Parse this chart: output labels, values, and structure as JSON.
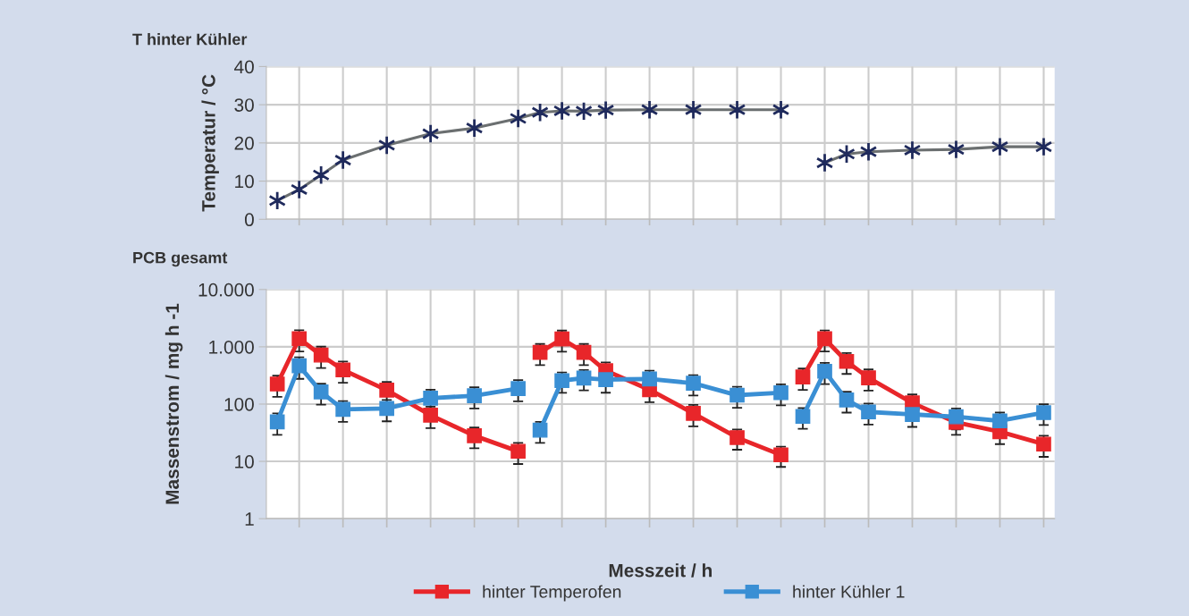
{
  "chart_data": [
    {
      "type": "line",
      "title": "T hinter Kühler",
      "ylabel": "Temperatur / °C",
      "categories": [
        null,
        null,
        null,
        null,
        null,
        null,
        null,
        null,
        null,
        null,
        null,
        null,
        null,
        null,
        null,
        null,
        null,
        null,
        null,
        null,
        null,
        null,
        null,
        null,
        null,
        null,
        null,
        null,
        null,
        null,
        null,
        null,
        null,
        null,
        null,
        null
      ],
      "series": [
        {
          "color": "#6b6f70",
          "values": [
            4.9,
            7.8,
            11.6,
            15.5,
            null,
            19.4,
            null,
            22.4,
            null,
            23.9,
            null,
            26.4,
            28,
            28.4,
            28.3,
            28.6,
            null,
            28.7,
            null,
            28.7,
            null,
            28.7,
            null,
            28.7,
            null,
            null,
            null,
            null,
            null,
            null,
            null,
            null,
            null,
            null,
            null,
            null
          ],
          "colors": [
            "#1f2a5c",
            "#1f2a5c",
            "#1f2a5c",
            "#1f2a5c",
            null,
            "#1f2a5c",
            null,
            "#1f2a5c",
            null,
            "#1f2a5c",
            null,
            "#1f2a5c",
            "#1f2a5c",
            "#1f2a5c",
            "#1f2a5c",
            "#1f2a5c",
            null,
            "#1f2a5c",
            null,
            "#1f2a5c",
            null,
            "#1f2a5c",
            null,
            "#1f2a5c",
            null,
            null,
            null,
            null,
            null,
            null,
            null,
            null,
            null,
            null,
            null,
            null
          ]
        },
        {
          "color": "#6b6f70",
          "values": [
            null,
            null,
            null,
            null,
            null,
            null,
            null,
            null,
            null,
            null,
            null,
            null,
            null,
            null,
            null,
            null,
            null,
            null,
            null,
            null,
            null,
            null,
            null,
            null,
            null,
            14.8,
            17.1,
            17.7,
            null,
            18.1,
            null,
            18.3,
            null,
            19.0,
            null,
            19.0
          ],
          "colors": [
            null,
            null,
            null,
            null,
            null,
            null,
            null,
            null,
            null,
            null,
            null,
            null,
            null,
            null,
            null,
            null,
            null,
            null,
            null,
            null,
            null,
            null,
            null,
            null,
            null,
            "#1f2a5c",
            "#1f2a5c",
            "#1f2a5c",
            null,
            "#1f2a5c",
            null,
            "#1f2a5c",
            null,
            "#1f2a5c",
            null,
            "#1f2a5c"
          ]
        }
      ],
      "ylim": [
        0,
        40
      ],
      "yticks": [
        0,
        10,
        20,
        30,
        40
      ],
      "tick_labels": "y",
      "grid": true,
      "marker": "cross",
      "line_style": "solid",
      "legend": false
    },
    {
      "type": "line",
      "title": "PCB gesamt",
      "xlabel": "Messzeit / h",
      "ylabel": "Massenstrom / mg h -1",
      "categories": [
        null,
        null,
        null,
        null,
        null,
        null,
        null,
        null,
        null,
        null,
        null,
        null,
        null,
        null,
        null,
        null,
        null,
        null,
        null,
        null,
        null,
        null,
        null,
        null,
        null,
        null,
        null,
        null,
        null,
        null,
        null,
        null,
        null,
        null,
        null,
        null
      ],
      "series": [
        {
          "name": "hinter Temperofen",
          "color": "#e8262a",
          "values": [
            224,
            1390,
            716,
            395,
            null,
            175,
            null,
            64,
            null,
            28,
            null,
            15,
            null,
            null,
            null,
            null,
            null,
            null,
            null,
            null,
            null,
            null,
            null,
            null,
            null,
            null,
            null,
            null,
            null,
            null,
            null,
            null,
            null,
            null,
            null,
            null
          ],
          "errors": [
            90,
            560,
            290,
            160,
            null,
            70,
            null,
            26,
            null,
            11,
            null,
            6,
            null,
            null,
            null,
            null,
            null,
            null,
            null,
            null,
            null,
            null,
            null,
            null,
            null,
            null,
            null,
            null,
            null,
            null,
            null,
            null,
            null,
            null,
            null,
            null
          ]
        },
        {
          "name": "hinter Kühler 1",
          "color": "#3a8fd4",
          "values": [
            49,
            466,
            163,
            81,
            null,
            84,
            null,
            127,
            null,
            140,
            null,
            187,
            null,
            null,
            null,
            null,
            null,
            null,
            null,
            null,
            null,
            null,
            null,
            null,
            null,
            null,
            null,
            null,
            null,
            null,
            null,
            null,
            null,
            null,
            null,
            null
          ],
          "errors": [
            20,
            190,
            65,
            32,
            null,
            34,
            null,
            51,
            null,
            56,
            null,
            75,
            null,
            null,
            null,
            null,
            null,
            null,
            null,
            null,
            null,
            null,
            null,
            null,
            null,
            null,
            null,
            null,
            null,
            null,
            null,
            null,
            null,
            null,
            null,
            null
          ]
        },
        {
          "color": "#e8262a",
          "values": [
            null,
            null,
            null,
            null,
            null,
            null,
            null,
            null,
            null,
            null,
            null,
            null,
            800,
            1370,
            800,
            384,
            null,
            178,
            null,
            69,
            null,
            26,
            null,
            13,
            null,
            null,
            null,
            null,
            null,
            null,
            null,
            null,
            null,
            null,
            null,
            null
          ],
          "errors": [
            null,
            null,
            null,
            null,
            null,
            null,
            null,
            null,
            null,
            null,
            null,
            null,
            320,
            550,
            320,
            150,
            null,
            70,
            null,
            28,
            null,
            10,
            null,
            5,
            null,
            null,
            null,
            null,
            null,
            null,
            null,
            null,
            null,
            null,
            null,
            null
          ]
        },
        {
          "color": "#3a8fd4",
          "values": [
            null,
            null,
            null,
            null,
            null,
            null,
            null,
            null,
            null,
            null,
            null,
            null,
            35,
            257,
            284,
            268,
            null,
            274,
            null,
            231,
            null,
            143,
            null,
            158,
            null,
            null,
            null,
            null,
            null,
            null,
            null,
            null,
            null,
            null,
            null,
            null
          ],
          "errors": [
            null,
            null,
            null,
            null,
            null,
            null,
            null,
            null,
            null,
            null,
            null,
            null,
            14,
            100,
            110,
            110,
            null,
            110,
            null,
            90,
            null,
            57,
            null,
            63,
            null,
            null,
            null,
            null,
            null,
            null,
            null,
            null,
            null,
            null,
            null,
            null
          ]
        },
        {
          "color": "#e8262a",
          "values": [
            null,
            null,
            null,
            null,
            null,
            null,
            null,
            null,
            null,
            null,
            null,
            null,
            null,
            null,
            null,
            null,
            null,
            null,
            null,
            null,
            null,
            null,
            null,
            null,
            297,
            1380,
            556,
            287,
            null,
            105,
            null,
            48,
            null,
            33,
            null,
            20
          ],
          "errors": [
            null,
            null,
            null,
            null,
            null,
            null,
            null,
            null,
            null,
            null,
            null,
            null,
            null,
            null,
            null,
            null,
            null,
            null,
            null,
            null,
            null,
            null,
            null,
            null,
            120,
            550,
            220,
            115,
            null,
            42,
            null,
            19,
            null,
            13,
            null,
            8
          ]
        },
        {
          "color": "#3a8fd4",
          "values": [
            null,
            null,
            null,
            null,
            null,
            null,
            null,
            null,
            null,
            null,
            null,
            null,
            null,
            null,
            null,
            null,
            null,
            null,
            null,
            null,
            null,
            null,
            null,
            null,
            61,
            374,
            118,
            73,
            null,
            66,
            null,
            60,
            null,
            51,
            null,
            71
          ],
          "errors": [
            null,
            null,
            null,
            null,
            null,
            null,
            null,
            null,
            null,
            null,
            null,
            null,
            null,
            null,
            null,
            null,
            null,
            null,
            null,
            null,
            null,
            null,
            null,
            null,
            24,
            150,
            47,
            29,
            null,
            26,
            null,
            24,
            null,
            20,
            null,
            28
          ]
        }
      ],
      "ylim": [
        1,
        10000
      ],
      "yticks": [
        1,
        10,
        100,
        {
          "value": 1000,
          "label": "1.000"
        },
        {
          "value": 10000,
          "label": "10.000"
        }
      ],
      "log": "y",
      "tick_labels": "y",
      "grid": true,
      "marker": "square",
      "line_style": "solid",
      "legend": "bottom"
    }
  ]
}
